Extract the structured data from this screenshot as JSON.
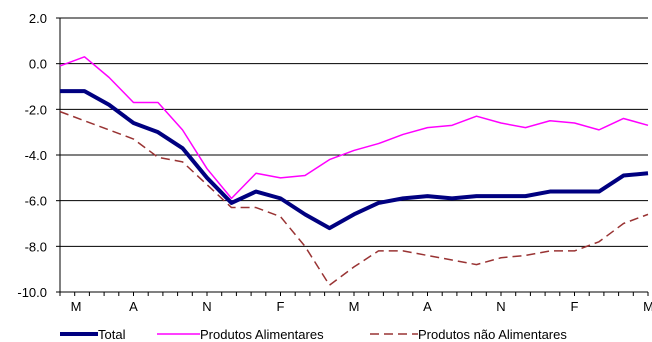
{
  "chart_data": {
    "type": "line",
    "title": "",
    "xlabel": "",
    "ylabel": "",
    "ylim": [
      -10.0,
      2.0
    ],
    "yticks": [
      2.0,
      0.0,
      -2.0,
      -4.0,
      -6.0,
      -8.0,
      -10.0
    ],
    "ytick_labels": [
      "2.0",
      "0.0",
      "-2.0",
      "-4.0",
      "-6.0",
      "-8.0",
      "-10.0"
    ],
    "x_tick_labels": [
      {
        "label": "M",
        "index": 0
      },
      {
        "label": "A",
        "index": 5
      },
      {
        "label": "N",
        "index": 10
      },
      {
        "label": "F",
        "index": 15
      },
      {
        "label": "M",
        "index": 20
      },
      {
        "label": "A",
        "index": 25
      },
      {
        "label": "N",
        "index": 30
      },
      {
        "label": "F",
        "index": 35
      },
      {
        "label": "M",
        "index": 40
      }
    ],
    "n_points": 41,
    "grid": "horizontal",
    "legend_position": "bottom",
    "series": [
      {
        "name": "Total",
        "color": "#000080",
        "style": "solid-thick",
        "values": [
          -1.2,
          -1.2,
          -1.8,
          -2.6,
          -3.0,
          -3.7,
          -5.0,
          -6.1,
          -5.6,
          -5.9,
          -6.6,
          -7.2,
          -6.6,
          -6.1,
          -5.9,
          -5.8,
          -5.9,
          -5.8,
          -5.8,
          -5.8,
          -5.6,
          -5.6,
          -5.6,
          -4.9,
          -4.8
        ]
      },
      {
        "name": "Produtos Alimentares",
        "color": "#ff00ff",
        "style": "solid",
        "values": [
          -0.1,
          0.3,
          -0.6,
          -1.7,
          -1.7,
          -2.9,
          -4.6,
          -5.9,
          -4.8,
          -5.0,
          -4.9,
          -4.2,
          -3.8,
          -3.5,
          -3.1,
          -2.8,
          -2.7,
          -2.3,
          -2.6,
          -2.8,
          -2.5,
          -2.6,
          -2.9,
          -2.4,
          -2.7
        ]
      },
      {
        "name": "Produtos não Alimentares",
        "color": "#993333",
        "style": "dashed",
        "values": [
          -2.1,
          -2.5,
          -2.9,
          -3.3,
          -4.1,
          -4.3,
          -5.3,
          -6.3,
          -6.3,
          -6.7,
          -8.0,
          -9.7,
          -8.9,
          -8.2,
          -8.2,
          -8.4,
          -8.6,
          -8.8,
          -8.5,
          -8.4,
          -8.2,
          -8.2,
          -7.8,
          -7.0,
          -6.6
        ]
      }
    ]
  }
}
